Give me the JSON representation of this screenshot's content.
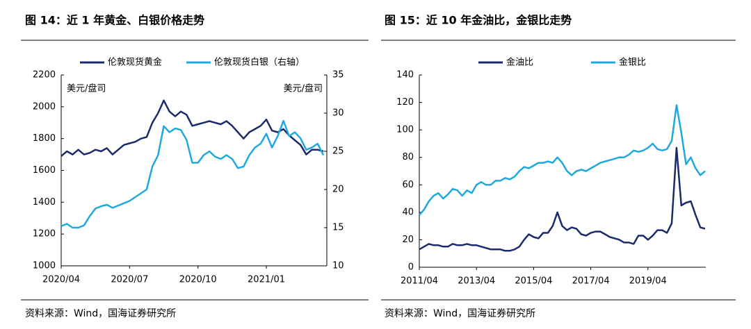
{
  "chart_data": [
    {
      "type": "line",
      "title": "图 14：近 1 年黄金、白银价格走势",
      "source": "资料来源：Wind，国海证券研究所",
      "y_unit": "美元/盘司",
      "y2_unit": "美元/盘司",
      "categories": [
        "2020/04",
        null,
        null,
        null,
        null,
        null,
        null,
        null,
        null,
        null,
        null,
        null,
        "2020/07",
        null,
        null,
        null,
        null,
        null,
        null,
        null,
        null,
        null,
        null,
        null,
        "2020/10",
        null,
        null,
        null,
        null,
        null,
        null,
        null,
        null,
        null,
        null,
        null,
        "2021/01",
        null,
        null,
        null,
        null,
        null,
        null,
        null,
        null,
        null,
        null
      ],
      "series": [
        {
          "name": "伦敦现货黄金",
          "color": "#1b2a6b",
          "values": [
            1690,
            1720,
            1700,
            1730,
            1700,
            1710,
            1730,
            1720,
            1740,
            1700,
            1730,
            1760,
            1770,
            1780,
            1800,
            1810,
            1900,
            1960,
            2040,
            1970,
            1940,
            1970,
            1950,
            1880,
            1890,
            1900,
            1910,
            1900,
            1890,
            1910,
            1880,
            1840,
            1800,
            1840,
            1860,
            1880,
            1920,
            1850,
            1840,
            1860,
            1820,
            1790,
            1760,
            1700,
            1730,
            1730,
            1720
          ]
        },
        {
          "name": "伦敦现货白银（右轴）",
          "color": "#1ea8e0",
          "axis": "y2",
          "values": [
            15.2,
            15.5,
            15.0,
            15.0,
            15.3,
            16.5,
            17.5,
            17.8,
            18.0,
            17.6,
            17.9,
            18.2,
            18.5,
            19.0,
            19.5,
            20,
            23,
            24.5,
            28.3,
            27.5,
            28,
            27.8,
            26.5,
            23.5,
            23.5,
            24.5,
            25,
            24.3,
            24,
            24.5,
            24,
            22.8,
            23,
            24.5,
            25.5,
            26,
            27.3,
            25.5,
            27,
            29,
            27,
            27.5,
            26.7,
            25.2,
            25.5,
            26,
            24.5
          ]
        }
      ],
      "ylim": [
        1000,
        2200
      ],
      "yticks": [
        1000,
        1200,
        1400,
        1600,
        1800,
        2000,
        2200
      ],
      "y2lim": [
        10,
        35
      ],
      "y2ticks": [
        10,
        15,
        20,
        25,
        30,
        35
      ]
    },
    {
      "type": "line",
      "title": "图 15：近 10 年金油比，金银比走势",
      "source": "资料来源：Wind，国海证券研究所",
      "categories": [
        "2011/04",
        null,
        null,
        null,
        null,
        null,
        null,
        null,
        null,
        null,
        null,
        null,
        "2013/04",
        null,
        null,
        null,
        null,
        null,
        null,
        null,
        null,
        null,
        null,
        null,
        "2015/04",
        null,
        null,
        null,
        null,
        null,
        null,
        null,
        null,
        null,
        null,
        null,
        "2017/04",
        null,
        null,
        null,
        null,
        null,
        null,
        null,
        null,
        null,
        null,
        null,
        "2019/04",
        null,
        null,
        null,
        null,
        null,
        null,
        null,
        null,
        null,
        null,
        null,
        null
      ],
      "series": [
        {
          "name": "金油比",
          "color": "#1b2a6b",
          "values": [
            13,
            15,
            17,
            16,
            16,
            15,
            15,
            17,
            16,
            16,
            17,
            16,
            16,
            15,
            14,
            13,
            13,
            13,
            12,
            12,
            13,
            15,
            20,
            24,
            22,
            21,
            25,
            25,
            30,
            40,
            30,
            27,
            29,
            28,
            24,
            23,
            25,
            26,
            26,
            24,
            22,
            21,
            20,
            18,
            18,
            17,
            23,
            23,
            20,
            23,
            27,
            27,
            25,
            32,
            87,
            45,
            47,
            48,
            38,
            29,
            28
          ]
        },
        {
          "name": "金银比",
          "color": "#1ea8e0",
          "values": [
            38,
            42,
            48,
            52,
            54,
            50,
            53,
            57,
            56,
            52,
            56,
            54,
            60,
            62,
            60,
            60,
            63,
            63,
            65,
            64,
            66,
            70,
            73,
            72,
            74,
            76,
            76,
            77,
            76,
            80,
            76,
            70,
            67,
            70,
            71,
            70,
            72,
            74,
            76,
            77,
            78,
            79,
            80,
            80,
            82,
            85,
            84,
            85,
            87,
            90,
            86,
            85,
            86,
            92,
            118,
            98,
            75,
            80,
            72,
            67,
            70
          ]
        }
      ],
      "ylim": [
        0,
        140
      ],
      "yticks": [
        0,
        20,
        40,
        60,
        80,
        100,
        120,
        140
      ]
    }
  ]
}
